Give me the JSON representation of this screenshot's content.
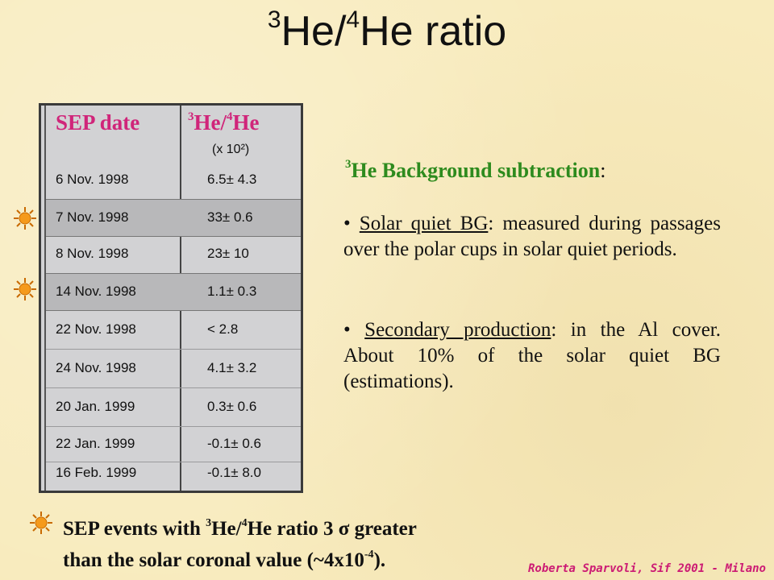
{
  "title": {
    "sup1": "3",
    "part1": "He/",
    "sup2": "4",
    "part2": "He ratio"
  },
  "table": {
    "header_date": "SEP date",
    "header_ratio_sup1": "3",
    "header_ratio_a": "He/",
    "header_ratio_sup2": "4",
    "header_ratio_b": "He",
    "header_ratio_sub": "(x 10²)",
    "rows": [
      {
        "date": "6 Nov. 1998",
        "value": "6.5± 4.3"
      },
      {
        "date": "7 Nov. 1998",
        "value": "33± 0.6"
      },
      {
        "date": "8 Nov. 1998",
        "value": "23± 10"
      },
      {
        "date": "14 Nov. 1998",
        "value": "1.1± 0.3"
      },
      {
        "date": "22 Nov. 1998",
        "value": "< 2.8"
      },
      {
        "date": "24 Nov. 1998",
        "value": "4.1± 3.2"
      },
      {
        "date": "20 Jan. 1999",
        "value": "0.3± 0.6"
      },
      {
        "date": "22 Jan. 1999",
        "value": "-0.1± 0.6"
      },
      {
        "date": "16 Feb. 1999",
        "value": "-0.1± 8.0"
      }
    ]
  },
  "background": {
    "title_sup": "3",
    "title": "He Background subtraction",
    "colon": ":",
    "bullet1_underlined": "Solar quiet BG",
    "bullet1_rest": ": measured during passages over the polar cups in solar quiet periods.",
    "bullet2_underlined": "Secondary production",
    "bullet2_rest": ": in the Al cover. About 10% of the solar quiet BG (estimations)."
  },
  "bottom": {
    "a": "SEP events with ",
    "sup1": "3",
    "b": "He/",
    "sup2": "4",
    "c": "He ratio 3 σ greater",
    "line2a": "than the solar coronal value (~4x10",
    "line2sup": "-4",
    "line2b": ")."
  },
  "credit": "Roberta Sparvoli,  Sif 2001 - Milano",
  "colors": {
    "accent_pink": "#d0257a",
    "accent_green": "#2e8b1e",
    "background": "#f8ebbd",
    "sun": "#f59a1c"
  }
}
